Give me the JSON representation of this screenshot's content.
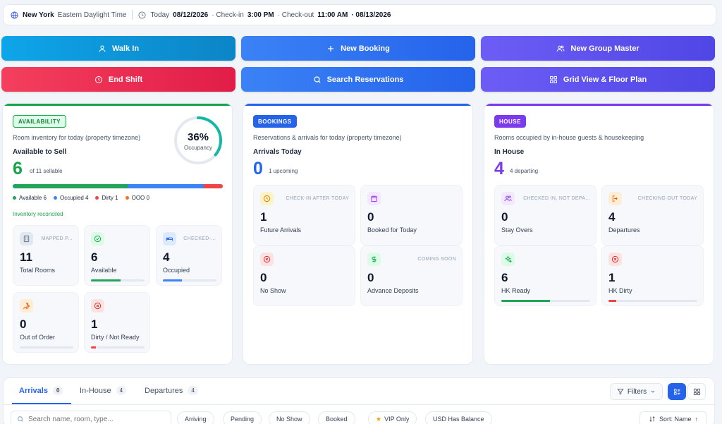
{
  "info_bar": {
    "city": "New York",
    "timezone": "Eastern Daylight Time",
    "today_label": "Today",
    "today_date": "08/12/2026",
    "checkin_label": "· Check-in",
    "checkin_time": "3:00 PM",
    "checkout_label": "· Check-out",
    "checkout_time": "11:00 AM",
    "checkout_date": "· 08/13/2026"
  },
  "actions": {
    "walk_in": "Walk In",
    "new_booking": "New Booking",
    "new_group_master": "New Group Master",
    "end_shift": "End Shift",
    "search_reservations": "Search Reservations",
    "grid_view": "Grid View & Floor Plan"
  },
  "availability": {
    "badge": "AVAILABILITY",
    "description": "Room inventory for today (property timezone)",
    "label": "Available to Sell",
    "value": "6",
    "sub": "of 11 sellable",
    "occupancy_pct": "36%",
    "occupancy_label": "Occupancy",
    "occupancy_fraction": 0.36,
    "bar": [
      {
        "key": "available",
        "value": 6,
        "color": "#22a35a"
      },
      {
        "key": "occupied",
        "value": 4,
        "color": "#3b82f6"
      },
      {
        "key": "dirty",
        "value": 1,
        "color": "#ef4444"
      },
      {
        "key": "ooo",
        "value": 0,
        "color": "#f97316"
      }
    ],
    "legend": {
      "available": "Available 6",
      "occupied": "Occupied 4",
      "dirty": "Dirty 1",
      "ooo": "OOO 0"
    },
    "reconciled": "Inventory reconciled",
    "cards": {
      "total": {
        "cap": "MAPPED P...",
        "num": "11",
        "label": "Total Rooms"
      },
      "available": {
        "num": "6",
        "label": "Available",
        "fill": 0.55,
        "color": "#22a35a"
      },
      "occupied": {
        "cap": "CHECKED-...",
        "num": "4",
        "label": "Occupied",
        "fill": 0.36,
        "color": "#3b82f6"
      },
      "ooo": {
        "num": "0",
        "label": "Out of Order",
        "fill": 0,
        "color": "#f97316"
      },
      "dirty": {
        "num": "1",
        "label": "Dirty / Not Ready",
        "fill": 0.09,
        "color": "#ef4444"
      }
    }
  },
  "bookings": {
    "badge": "BOOKINGS",
    "description": "Reservations & arrivals for today (property timezone)",
    "label": "Arrivals Today",
    "value": "0",
    "sub": "1 upcoming",
    "cards": {
      "future": {
        "cap": "CHECK-IN AFTER TODAY",
        "num": "1",
        "label": "Future Arrivals"
      },
      "booked": {
        "num": "0",
        "label": "Booked for Today"
      },
      "noshow": {
        "num": "0",
        "label": "No Show"
      },
      "deposits": {
        "cap": "COMING SOON",
        "num": "0",
        "label": "Advance Deposits"
      }
    }
  },
  "house": {
    "badge": "HOUSE",
    "description": "Rooms occupied by in-house guests & housekeeping",
    "label": "In House",
    "value": "4",
    "sub": "4 departing",
    "cards": {
      "stayovers": {
        "cap": "CHECKED IN, NOT DEPA...",
        "num": "0",
        "label": "Stay Overs"
      },
      "departures": {
        "cap": "CHECKING OUT TODAY",
        "num": "4",
        "label": "Departures"
      },
      "hkready": {
        "num": "6",
        "label": "HK Ready",
        "fill": 0.55,
        "color": "#22a35a"
      },
      "hkdirty": {
        "num": "1",
        "label": "HK Dirty",
        "fill": 0.09,
        "color": "#ef4444"
      }
    }
  },
  "list": {
    "tabs": [
      {
        "label": "Arrivals",
        "count": "0"
      },
      {
        "label": "In-House",
        "count": "4"
      },
      {
        "label": "Departures",
        "count": "4"
      }
    ],
    "filters_label": "Filters",
    "search_placeholder": "Search name, room, type...",
    "chips": [
      "Arriving",
      "Pending",
      "No Show",
      "Booked",
      "VIP Only",
      "USD  Has Balance"
    ],
    "sort_label": "Sort: Name"
  }
}
